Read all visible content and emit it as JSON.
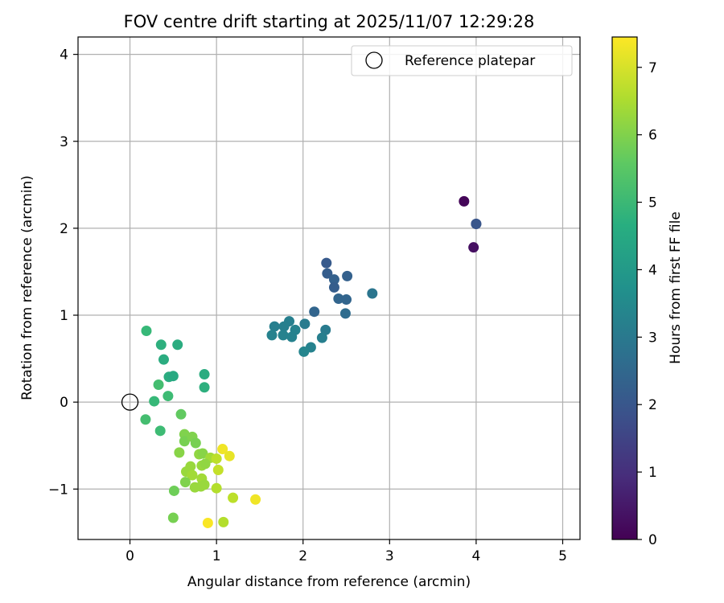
{
  "chart_data": {
    "type": "scatter",
    "title": "FOV centre drift starting at 2025/11/07 12:29:28",
    "xlabel": "Angular distance from reference (arcmin)",
    "ylabel": "Rotation from reference (arcmin)",
    "xlim": [
      -0.6,
      5.2
    ],
    "ylim": [
      -1.58,
      4.2
    ],
    "xticks": [
      0,
      1,
      2,
      3,
      4,
      5
    ],
    "yticks": [
      -1,
      0,
      1,
      2,
      3,
      4
    ],
    "grid": true,
    "legend": {
      "position": "top-right",
      "entries": [
        "Reference platepar"
      ]
    },
    "reference": {
      "label": "Reference platepar",
      "x": 0.0,
      "y": 0.0
    },
    "colorbar": {
      "label": "Hours from first FF file",
      "min": 0,
      "max": 7.45,
      "ticks": [
        0,
        1,
        2,
        3,
        4,
        5,
        6,
        7
      ],
      "colormap": "viridis"
    },
    "points": [
      {
        "x": 3.86,
        "y": 2.31,
        "h": 0.1
      },
      {
        "x": 3.97,
        "y": 1.78,
        "h": 0.3
      },
      {
        "x": 4.0,
        "y": 2.05,
        "h": 1.6
      },
      {
        "x": 4.0,
        "y": 2.05,
        "h": 2.0
      },
      {
        "x": 2.27,
        "y": 1.6,
        "h": 2.1
      },
      {
        "x": 2.28,
        "y": 1.48,
        "h": 2.2
      },
      {
        "x": 2.36,
        "y": 1.41,
        "h": 2.3
      },
      {
        "x": 2.36,
        "y": 1.32,
        "h": 2.2
      },
      {
        "x": 2.51,
        "y": 1.45,
        "h": 2.3
      },
      {
        "x": 2.41,
        "y": 1.19,
        "h": 2.4
      },
      {
        "x": 2.5,
        "y": 1.18,
        "h": 2.4
      },
      {
        "x": 2.13,
        "y": 1.04,
        "h": 2.4
      },
      {
        "x": 2.49,
        "y": 1.02,
        "h": 2.6
      },
      {
        "x": 2.8,
        "y": 1.25,
        "h": 2.9
      },
      {
        "x": 2.02,
        "y": 0.9,
        "h": 3.1
      },
      {
        "x": 1.84,
        "y": 0.93,
        "h": 3.2
      },
      {
        "x": 1.78,
        "y": 0.87,
        "h": 3.2
      },
      {
        "x": 1.67,
        "y": 0.87,
        "h": 3.2
      },
      {
        "x": 1.91,
        "y": 0.83,
        "h": 3.3
      },
      {
        "x": 1.64,
        "y": 0.77,
        "h": 3.3
      },
      {
        "x": 1.77,
        "y": 0.77,
        "h": 3.3
      },
      {
        "x": 1.87,
        "y": 0.75,
        "h": 3.3
      },
      {
        "x": 2.26,
        "y": 0.83,
        "h": 3.1
      },
      {
        "x": 2.22,
        "y": 0.74,
        "h": 3.2
      },
      {
        "x": 2.09,
        "y": 0.63,
        "h": 3.3
      },
      {
        "x": 2.01,
        "y": 0.58,
        "h": 3.4
      },
      {
        "x": 0.19,
        "y": 0.82,
        "h": 5.0
      },
      {
        "x": 0.36,
        "y": 0.66,
        "h": 4.7
      },
      {
        "x": 0.55,
        "y": 0.66,
        "h": 4.6
      },
      {
        "x": 0.39,
        "y": 0.49,
        "h": 4.6
      },
      {
        "x": 0.45,
        "y": 0.29,
        "h": 4.6
      },
      {
        "x": 0.5,
        "y": 0.3,
        "h": 4.5
      },
      {
        "x": 0.86,
        "y": 0.32,
        "h": 4.6
      },
      {
        "x": 0.86,
        "y": 0.17,
        "h": 4.7
      },
      {
        "x": 0.33,
        "y": 0.2,
        "h": 5.2
      },
      {
        "x": 0.44,
        "y": 0.07,
        "h": 5.1
      },
      {
        "x": 0.28,
        "y": 0.01,
        "h": 5.0
      },
      {
        "x": 0.18,
        "y": -0.2,
        "h": 5.2
      },
      {
        "x": 0.35,
        "y": -0.33,
        "h": 5.1
      },
      {
        "x": 0.59,
        "y": -0.14,
        "h": 5.6
      },
      {
        "x": 0.63,
        "y": -0.37,
        "h": 6.0
      },
      {
        "x": 0.63,
        "y": -0.45,
        "h": 5.9
      },
      {
        "x": 0.72,
        "y": -0.4,
        "h": 6.0
      },
      {
        "x": 0.76,
        "y": -0.47,
        "h": 5.9
      },
      {
        "x": 0.57,
        "y": -0.58,
        "h": 6.1
      },
      {
        "x": 0.8,
        "y": -0.6,
        "h": 6.2
      },
      {
        "x": 0.84,
        "y": -0.59,
        "h": 6.1
      },
      {
        "x": 0.93,
        "y": -0.64,
        "h": 6.4
      },
      {
        "x": 0.83,
        "y": -0.73,
        "h": 6.3
      },
      {
        "x": 0.7,
        "y": -0.74,
        "h": 6.3
      },
      {
        "x": 0.65,
        "y": -0.8,
        "h": 6.3
      },
      {
        "x": 0.72,
        "y": -0.84,
        "h": 6.4
      },
      {
        "x": 0.87,
        "y": -0.71,
        "h": 6.2
      },
      {
        "x": 0.83,
        "y": -0.88,
        "h": 6.4
      },
      {
        "x": 0.86,
        "y": -0.95,
        "h": 6.3
      },
      {
        "x": 0.82,
        "y": -0.97,
        "h": 6.3
      },
      {
        "x": 0.75,
        "y": -0.98,
        "h": 6.3
      },
      {
        "x": 0.64,
        "y": -0.92,
        "h": 6.0
      },
      {
        "x": 0.51,
        "y": -1.02,
        "h": 5.8
      },
      {
        "x": 1.0,
        "y": -0.65,
        "h": 6.7
      },
      {
        "x": 1.07,
        "y": -0.54,
        "h": 7.3
      },
      {
        "x": 1.15,
        "y": -0.62,
        "h": 7.2
      },
      {
        "x": 1.02,
        "y": -0.78,
        "h": 6.8
      },
      {
        "x": 1.0,
        "y": -0.99,
        "h": 6.6
      },
      {
        "x": 1.19,
        "y": -1.1,
        "h": 6.7
      },
      {
        "x": 1.45,
        "y": -1.12,
        "h": 7.3
      },
      {
        "x": 0.5,
        "y": -1.33,
        "h": 5.9
      },
      {
        "x": 0.9,
        "y": -1.39,
        "h": 7.4
      },
      {
        "x": 1.08,
        "y": -1.38,
        "h": 6.6
      }
    ]
  }
}
